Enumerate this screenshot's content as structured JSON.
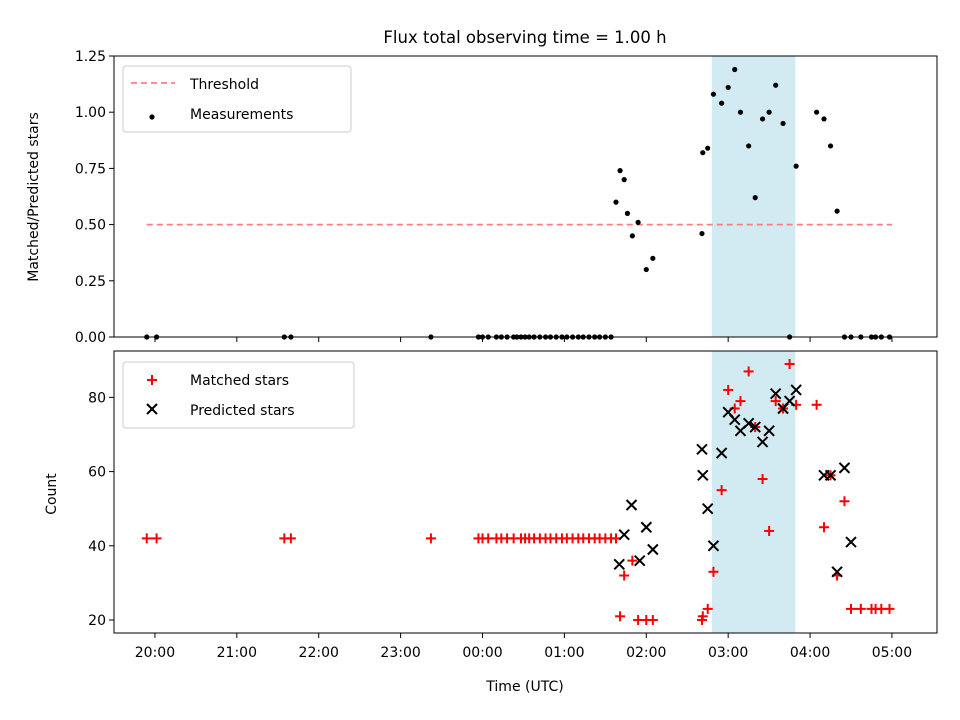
{
  "chart_data": [
    {
      "type": "line",
      "title": "Flux total observing time = 1.00 h",
      "xlabel": "",
      "ylabel": "Matched/Predicted stars",
      "xlim": [
        19.5,
        29.55
      ],
      "ylim": [
        0,
        1.25
      ],
      "y_ticks": [
        0,
        0.25,
        0.5,
        0.75,
        1.0,
        1.25
      ],
      "y_tick_labels": [
        "0.00",
        "0.25",
        "0.50",
        "0.75",
        "1.00",
        "1.25"
      ],
      "highlight_range": [
        26.8,
        27.82
      ],
      "highlight_color": "#add8e6",
      "legend_position": "upper-left",
      "series": [
        {
          "name": "Threshold",
          "style": "dashed-line",
          "color": "#ff7f7f",
          "x": [
            19.9,
            29.0
          ],
          "y": [
            0.5,
            0.5
          ]
        },
        {
          "name": "Measurements",
          "style": "scatter-dot",
          "color": "#000000",
          "x": [
            19.9,
            20.02,
            21.58,
            21.66,
            23.37,
            23.95,
            24.0,
            24.07,
            24.17,
            24.23,
            24.3,
            24.38,
            24.42,
            24.47,
            24.52,
            24.57,
            24.63,
            24.7,
            24.77,
            24.83,
            24.9,
            24.97,
            25.03,
            25.1,
            25.17,
            25.23,
            25.3,
            25.37,
            25.43,
            25.5,
            25.57,
            25.63,
            25.68,
            25.73,
            25.77,
            25.83,
            25.9,
            26.0,
            26.08,
            26.68,
            26.69,
            26.75,
            26.82,
            26.92,
            27.0,
            27.08,
            27.15,
            27.25,
            27.33,
            27.42,
            27.5,
            27.58,
            27.67,
            27.75,
            27.83,
            28.08,
            28.17,
            28.25,
            28.33,
            28.42,
            28.5,
            28.62,
            28.75,
            28.8,
            28.87,
            28.97
          ],
          "y": [
            0,
            0,
            0,
            0,
            0,
            0,
            0,
            0,
            0,
            0,
            0,
            0,
            0,
            0,
            0,
            0,
            0,
            0,
            0,
            0,
            0,
            0,
            0,
            0,
            0,
            0,
            0,
            0,
            0,
            0,
            0,
            0.6,
            0.74,
            0.7,
            0.55,
            0.45,
            0.51,
            0.3,
            0.35,
            0.46,
            0.82,
            0.84,
            1.08,
            1.04,
            1.11,
            1.19,
            1.0,
            0.85,
            0.62,
            0.97,
            1.0,
            1.12,
            0.95,
            0,
            0.76,
            1.0,
            0.97,
            0.85,
            0.56,
            0,
            0,
            0,
            0,
            0,
            0,
            0
          ]
        }
      ]
    },
    {
      "type": "scatter",
      "title": "",
      "xlabel": "Time (UTC)",
      "ylabel": "Count",
      "xlim": [
        19.5,
        29.55
      ],
      "ylim": [
        16.5,
        92.5
      ],
      "y_ticks": [
        20,
        40,
        60,
        80
      ],
      "y_tick_labels": [
        "20",
        "40",
        "60",
        "80"
      ],
      "x_ticks": [
        20,
        21,
        22,
        23,
        24,
        25,
        26,
        27,
        28,
        29
      ],
      "x_tick_labels": [
        "20:00",
        "21:00",
        "22:00",
        "23:00",
        "00:00",
        "01:00",
        "02:00",
        "03:00",
        "04:00",
        "05:00"
      ],
      "highlight_range": [
        26.8,
        27.82
      ],
      "highlight_color": "#add8e6",
      "legend_position": "upper-left",
      "series": [
        {
          "name": "Matched stars",
          "marker": "plus",
          "color": "#ff0000",
          "x": [
            19.9,
            20.02,
            21.58,
            21.66,
            23.37,
            23.95,
            24.0,
            24.07,
            24.17,
            24.23,
            24.3,
            24.38,
            24.47,
            24.52,
            24.57,
            24.63,
            24.7,
            24.77,
            24.83,
            24.9,
            24.97,
            25.03,
            25.1,
            25.17,
            25.23,
            25.3,
            25.37,
            25.43,
            25.5,
            25.57,
            25.63,
            25.68,
            25.73,
            25.83,
            25.9,
            26.0,
            26.08,
            26.68,
            26.69,
            26.75,
            26.82,
            26.92,
            27.0,
            27.08,
            27.15,
            27.25,
            27.33,
            27.42,
            27.5,
            27.58,
            27.67,
            27.75,
            27.83,
            28.08,
            28.17,
            28.25,
            28.33,
            28.42,
            28.5,
            28.62,
            28.75,
            28.8,
            28.87,
            28.97
          ],
          "y": [
            42,
            42,
            42,
            42,
            42,
            42,
            42,
            42,
            42,
            42,
            42,
            42,
            42,
            42,
            42,
            42,
            42,
            42,
            42,
            42,
            42,
            42,
            42,
            42,
            42,
            42,
            42,
            42,
            42,
            42,
            42,
            21,
            32,
            36,
            20,
            20,
            20,
            20,
            21,
            23,
            33,
            55,
            82,
            77,
            79,
            87,
            72,
            58,
            44,
            79,
            77,
            89,
            78,
            78,
            45,
            59,
            32,
            52,
            23,
            23,
            23,
            23,
            23,
            23
          ]
        },
        {
          "name": "Predicted stars",
          "marker": "x",
          "color": "#000000",
          "x": [
            25.67,
            25.73,
            25.82,
            25.92,
            26.0,
            26.08,
            26.68,
            26.69,
            26.75,
            26.82,
            26.92,
            27.0,
            27.08,
            27.15,
            27.25,
            27.33,
            27.42,
            27.5,
            27.58,
            27.67,
            27.75,
            27.83,
            28.17,
            28.25,
            28.33,
            28.42,
            28.5
          ],
          "y": [
            35,
            43,
            51,
            36,
            45,
            39,
            66,
            59,
            50,
            40,
            65,
            76,
            74,
            71,
            73,
            72,
            68,
            71,
            81,
            77,
            79,
            82,
            59,
            59,
            33,
            61,
            41
          ]
        }
      ]
    }
  ]
}
